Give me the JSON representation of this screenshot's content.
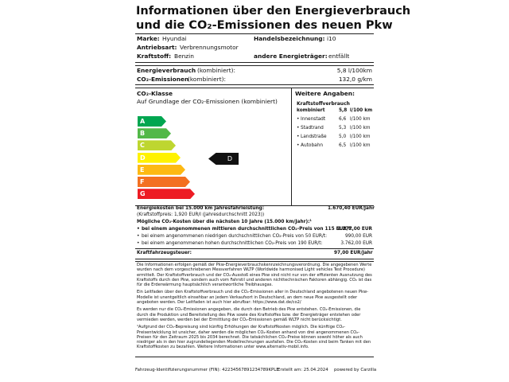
{
  "header": {
    "title_line1": "Informationen über den Energieverbrauch",
    "title_line2": "und die CO₂-Emissionen des neuen Pkw"
  },
  "vehicle": {
    "brand_label": "Marke:",
    "brand": "Hyundai",
    "model_label": "Handelsbezeichnung:",
    "model": "i10",
    "drive_label": "Antriebsart:",
    "drive": "Verbrennungsmotor",
    "fuel_label": "Kraftstoff:",
    "fuel": "Benzin",
    "other_label": "andere Energieträger:",
    "other": "entfällt"
  },
  "consumption": {
    "rows": [
      [
        "Energieverbrauch",
        "(kombiniert):",
        "5,8 l/100km"
      ],
      [
        "CO₂-Emissionen",
        "(kombiniert):",
        "132,0 g/km"
      ]
    ]
  },
  "co2_class": {
    "title": "CO₂-Klasse",
    "subtitle": "Auf Grundlage der CO₂-Emissionen (kombiniert)",
    "classes": [
      "A",
      "B",
      "C",
      "D",
      "E",
      "F",
      "G"
    ],
    "current": "D"
  },
  "further": {
    "title": "Weitere Angaben:",
    "subtitle": "Kraftstoffverbrauch",
    "rows": [
      [
        "kombiniert",
        "5,8",
        "l/100 km"
      ],
      [
        "Innenstadt",
        "6,6",
        "l/100 km"
      ],
      [
        "Stadtrand",
        "5,3",
        "l/100 km"
      ],
      [
        "Landstraße",
        "5,0",
        "l/100 km"
      ],
      [
        "Autobahn",
        "6,5",
        "l/100 km"
      ]
    ]
  },
  "costs": {
    "energy_label": "Energiekosten bei 15.000 km Jahresfahrleistung:",
    "energy_value": "1.670,40 EUR/Jahr",
    "fuel_price": "(Kraftstoffpreis: 1,920 EUR/l (Jahresdurchschnitt 2023))",
    "co2_title": "Mögliche CO₂-Kosten über die nächsten 10 Jahre (15.000 km/Jahr):¹",
    "co2_rows": [
      [
        "bei einem angenommenen mittleren durchschnittlichen CO₂-Preis von 115 EUR/t:",
        "2.277,00 EUR"
      ],
      [
        "bei einem angenommenen niedrigen durchschnittlichen CO₂-Preis von 50 EUR/t:",
        "990,00 EUR"
      ],
      [
        "bei einem angenommenen hohen durchschnittlichen CO₂-Preis von 190 EUR/t:",
        "3.762,00 EUR"
      ]
    ],
    "tax_label": "Kraftfahrzeugsteuer:",
    "tax_value": "97,00 EUR/Jahr"
  },
  "info": {
    "paragraphs": [
      "Die Informationen erfolgen gemäß der Pkw-Energieverbrauchskennzeichnungsverordnung. Die angegebenen Werte wurden nach dem vorgeschriebenen Messverfahren WLTP (Worldwide harmonised Light vehicles Test Procedure) ermittelt. Der Kraftstoffverbrauch und der CO₂-Ausstoß eines Pkw sind nicht nur von der effizienten Ausnutzung des Kraftstoffs durch den Pkw, sondern auch vom Fahrstil und anderen nichttechnischen Faktoren abhängig. CO₂ ist das für die Erderwärmung hauptsächlich verantwortliche Treibhausgas.",
      "Ein Leitfaden über den Kraftstoffverbrauch und die CO₂-Emissionen aller in Deutschland angebotenen neuen Pkw-Modelle ist unentgeltlich einsehbar an jedem Verkaufsort in Deutschland, an dem neue Pkw ausgestellt oder angeboten werden. Der Leitfaden ist auch hier abrufbar: https://www.dat.de/co2/",
      "Es werden nur die CO₂-Emissionen angegeben, die durch den Betrieb des Pkw entstehen. CO₂-Emissionen, die durch die Produktion und Bereitstellung des Pkw sowie des Kraftstoffes bzw. der Energieträger entstehen oder vermieden werden, werden bei der Ermittlung der CO₂-Emissionen gemäß WLTP nicht berücksichtigt.",
      "¹Aufgrund der CO₂-Bepreisung sind künftig Erhöhungen der Kraftstoffkosten möglich. Die künftige CO₂-Preisentwicklung ist unsicher, daher werden die möglichen CO₂-Kosten anhand von drei angenommenen CO₂-Preisen für den Zeitraum 2025 bis 2034 berechnet. Die tatsächlichen CO₂-Preise können sowohl höher als auch niedriger als in den hier zugrundeliegenden Modellrechnungen ausfallen. Die CO₂-Kosten sind beim Tanken mit den Kraftstoffkosten zu bezahlen. Weitere Informationen unter www.alternativ-mobil.info."
    ]
  },
  "footer": {
    "fin": "Fahrzeug-Identifizierungsnummer (FIN): 42234567891234789KPLE",
    "created": "Erstellt am: 25.04.2024",
    "powered": "powered by Carzilla"
  }
}
